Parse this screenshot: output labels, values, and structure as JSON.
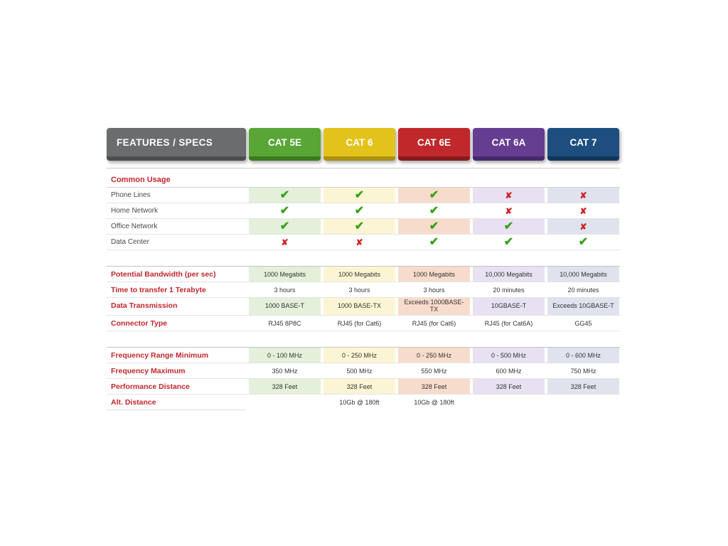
{
  "chart_data": {
    "type": "table",
    "header": {
      "label_col": "FEATURES / SPECS"
    },
    "columns": [
      {
        "label": "CAT 5E",
        "color": "#59a636",
        "dark_edge": "#3b7a20",
        "tint": "#e4f0da"
      },
      {
        "label": "CAT 6",
        "color": "#e3c31b",
        "dark_edge": "#ab9110",
        "tint": "#fcf5d4"
      },
      {
        "label": "CAT 6E",
        "color": "#c1282b",
        "dark_edge": "#871b1d",
        "tint": "#f8dccb"
      },
      {
        "label": "CAT 6A",
        "color": "#653e92",
        "dark_edge": "#452a69",
        "tint": "#e7e1f1"
      },
      {
        "label": "CAT 7",
        "color": "#1d4e7f",
        "dark_edge": "#123659",
        "tint": "#dfe3ed"
      }
    ],
    "marks_legend": {
      "check": "✔",
      "cross": "✘",
      "check_color": "#3aa11c",
      "cross_color": "#d01f26"
    },
    "rows": [
      {
        "kind": "section",
        "label": "Common Usage"
      },
      {
        "kind": "marks",
        "label": "Phone Lines",
        "marks": [
          "✔",
          "✔",
          "✔",
          "✘",
          "✘"
        ]
      },
      {
        "kind": "marks",
        "label": "Home Network",
        "marks": [
          "✔",
          "✔",
          "✔",
          "✘",
          "✘"
        ]
      },
      {
        "kind": "marks",
        "label": "Office Network",
        "marks": [
          "✔",
          "✔",
          "✔",
          "✔",
          "✘"
        ]
      },
      {
        "kind": "marks",
        "label": "Data Center",
        "marks": [
          "✘",
          "✘",
          "✔",
          "✔",
          "✔"
        ]
      },
      {
        "kind": "spec",
        "label": "Potential Bandwidth (per sec)",
        "values": [
          "1000 Megabits",
          "1000 Megabits",
          "1000 Megabits",
          "10,000 Megabits",
          "10,000 Megabits"
        ]
      },
      {
        "kind": "spec",
        "label": "Time to transfer 1 Terabyte",
        "values": [
          "3 hours",
          "3 hours",
          "3 hours",
          "20 minutes",
          "20 minutes"
        ]
      },
      {
        "kind": "spec",
        "label": "Data Transmission",
        "values": [
          "1000 BASE-T",
          "1000 BASE-TX",
          "Exceeds 1000BASE-TX",
          "10GBASE-T",
          "Exceeds 10GBASE-T"
        ]
      },
      {
        "kind": "spec",
        "label": "Connector Type",
        "values": [
          "RJ45 8P8C",
          "RJ45 (for Cat6)",
          "RJ45 (for Cat6)",
          "RJ45 (for Cat6A)",
          "GG45"
        ]
      },
      {
        "kind": "spec",
        "label": "Frequency Range Minimum",
        "values": [
          "0 - 100 MHz",
          "0 - 250 MHz",
          "0 - 250 MHz",
          "0 - 500 MHz",
          "0 - 600 MHz"
        ]
      },
      {
        "kind": "spec",
        "label": "Frequency Maximum",
        "values": [
          "350 MHz",
          "500 MHz",
          "550 MHz",
          "600 MHz",
          "750 MHz"
        ]
      },
      {
        "kind": "spec",
        "label": "Performance Distance",
        "values": [
          "328 Feet",
          "328 Feet",
          "328 Feet",
          "328 Feet",
          "328 Feet"
        ]
      },
      {
        "kind": "spec",
        "label": "Alt. Distance",
        "values": [
          "",
          "10Gb @ 180ft",
          "10Gb @ 180ft",
          "",
          ""
        ]
      }
    ]
  }
}
